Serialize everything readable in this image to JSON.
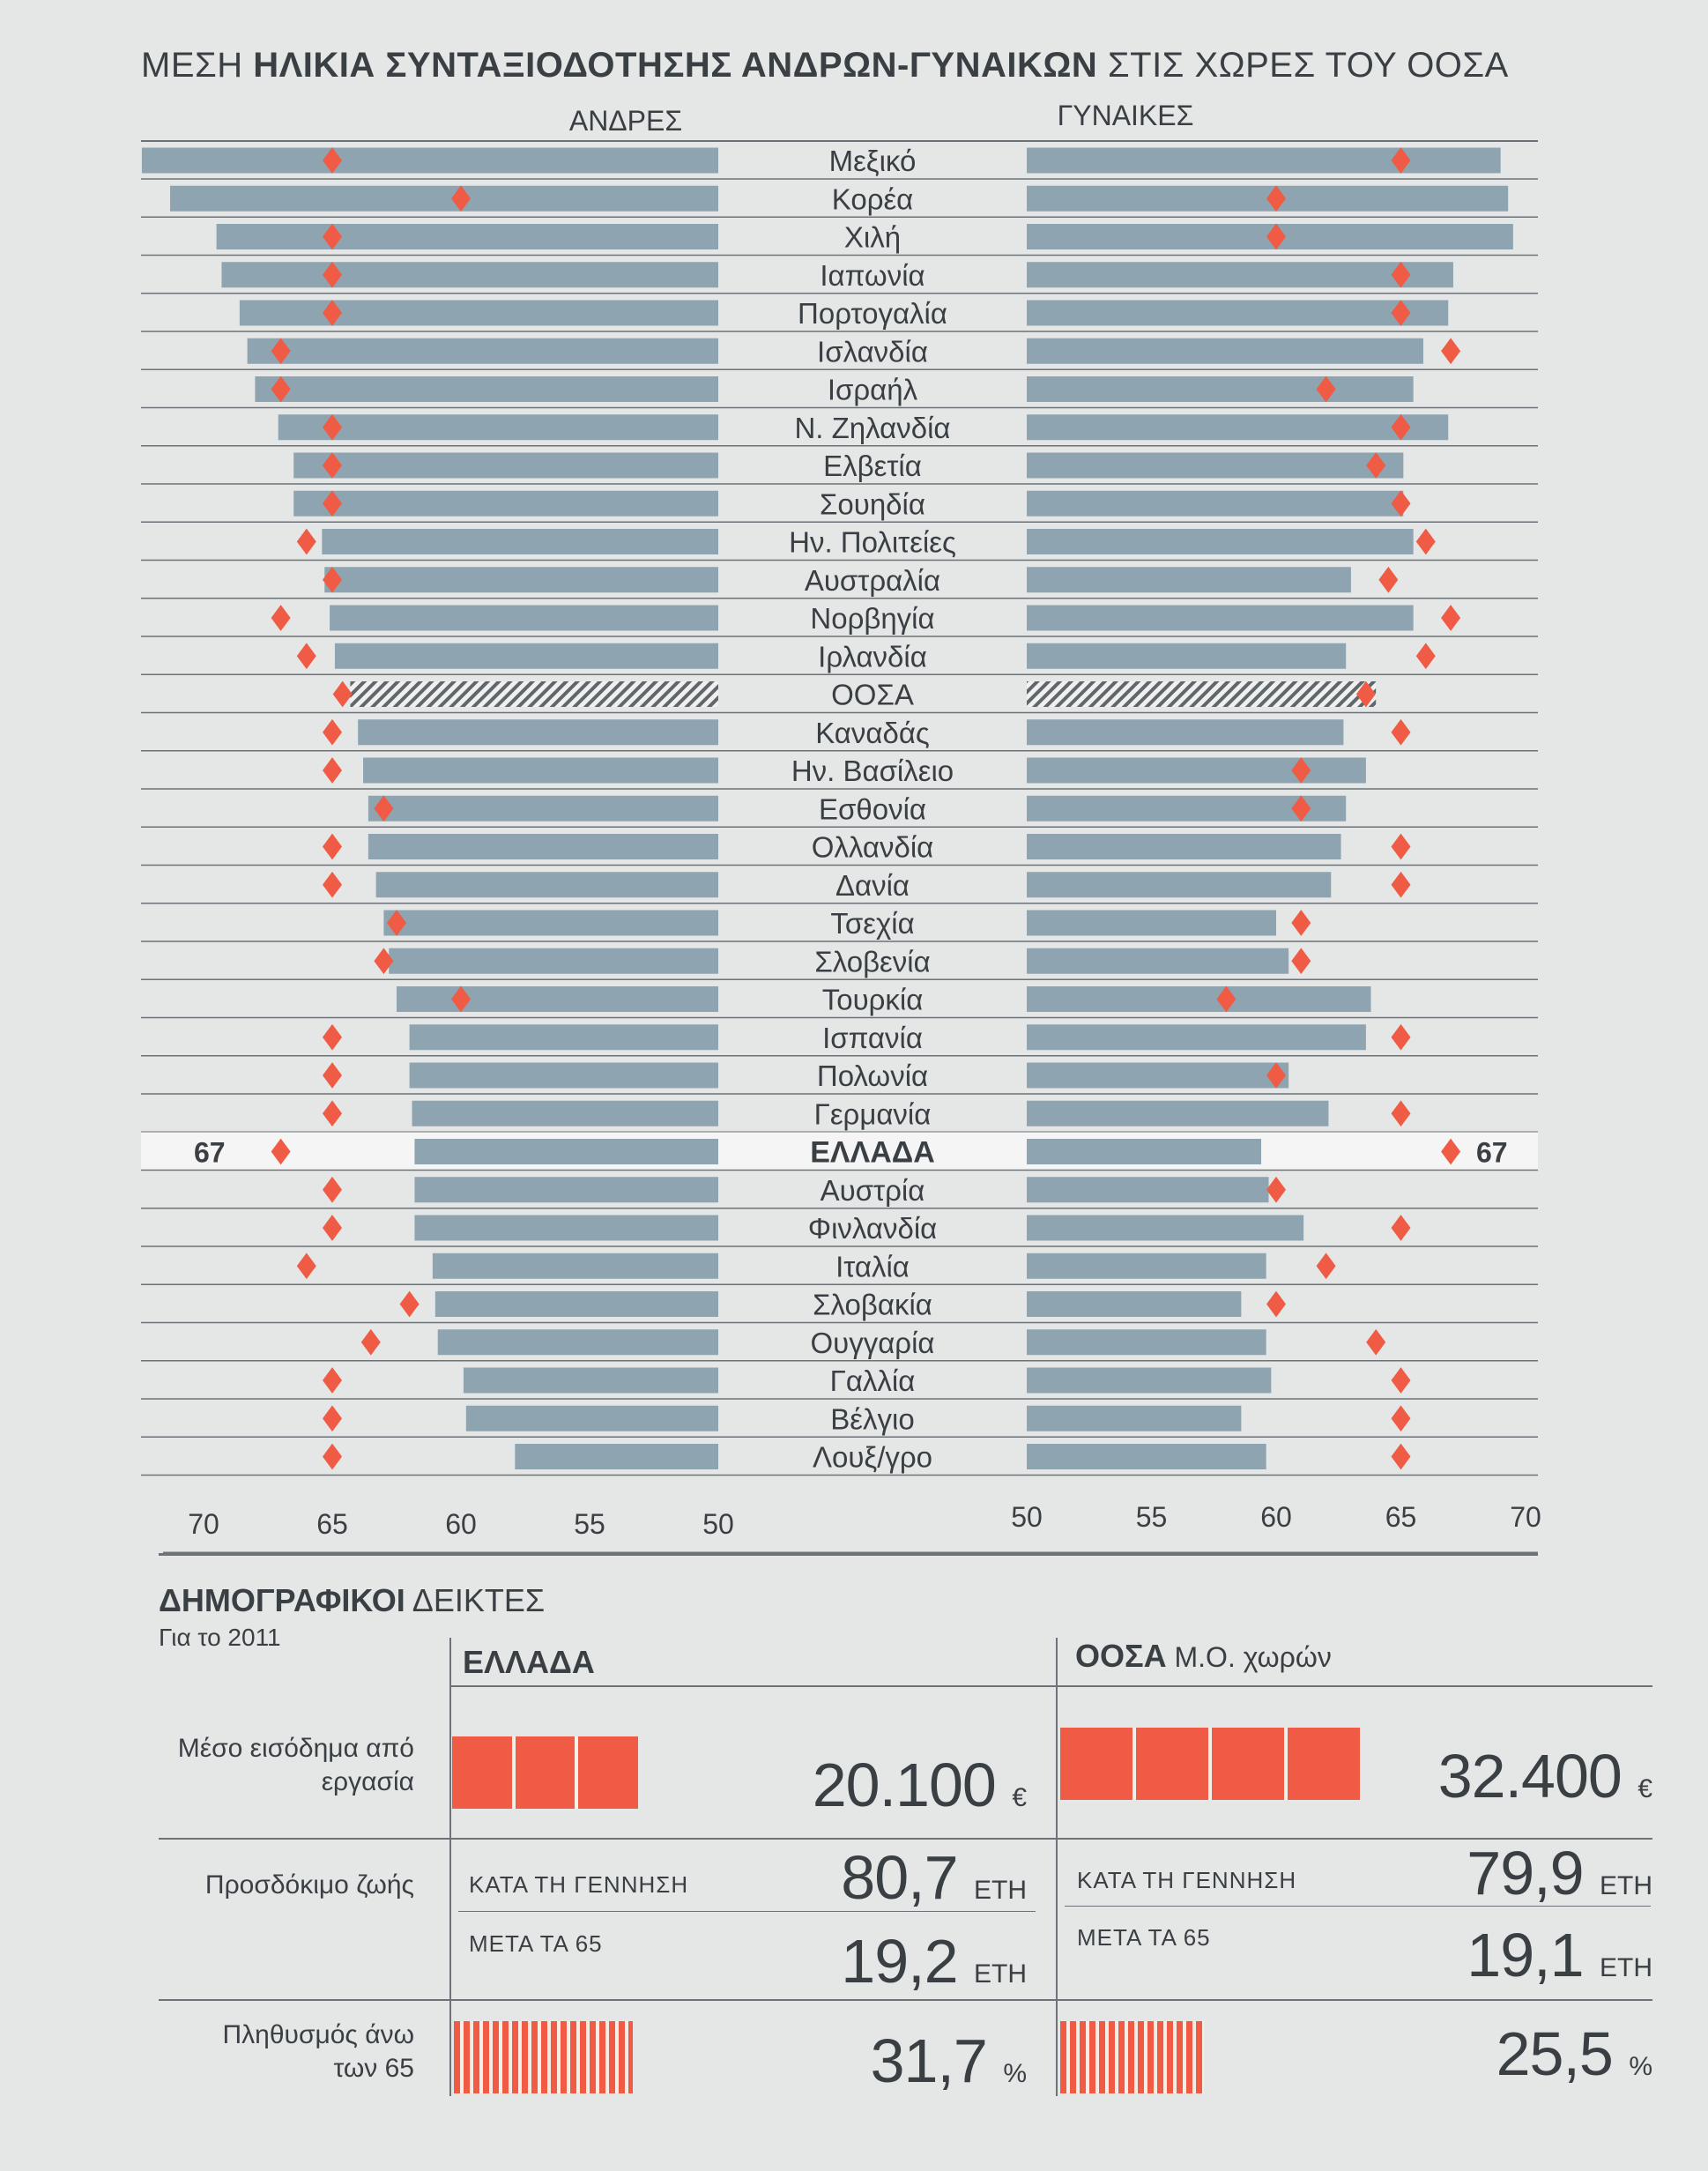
{
  "title": {
    "part1": "ΜΕΣΗ ",
    "bold": "ΗΛΙΚΙΑ ΣΥΝΤΑΞΙΟΔΟΤΗΣΗΣ ΑΝΔΡΩΝ-ΓΥΝΑΙΚΩΝ",
    "part2": " ΣΤΙΣ ΧΩΡΕΣ ΤΟΥ ΟΟΣΑ"
  },
  "chart_data": {
    "type": "bar",
    "title": "ΜΕΣΗ ΗΛΙΚΙΑ ΣΥΝΤΑΞΙΟΔΟΤΗΣΗΣ ΑΝΔΡΩΝ-ΓΥΝΑΙΚΩΝ ΣΤΙΣ ΧΩΡΕΣ ΤΟΥ ΟΟΣΑ",
    "left_header": "ΑΝΔΡΕΣ",
    "right_header": "ΓΥΝΑΙΚΕΣ",
    "left_ticks": [
      "70",
      "65",
      "60",
      "55",
      "50"
    ],
    "right_ticks": [
      "50",
      "55",
      "60",
      "65",
      "70"
    ],
    "axis_range": [
      50,
      70
    ],
    "greece_label": "67",
    "accent_color": "#ef5b44",
    "bar_color": "#8ea4b1",
    "countries": [
      "Μεξικό",
      "Κορέα",
      "Χιλή",
      "Ιαπωνία",
      "Πορτογαλία",
      "Ισλανδία",
      "Ισραήλ",
      "Ν. Ζηλανδία",
      "Ελβετία",
      "Σουηδία",
      "Ην. Πολιτείες",
      "Αυστραλία",
      "Νορβηγία",
      "Ιρλανδία",
      "ΟΟΣΑ",
      "Καναδάς",
      "Ην. Βασίλειο",
      "Εσθονία",
      "Ολλανδία",
      "Δανία",
      "Τσεχία",
      "Σλοβενία",
      "Τουρκία",
      "Ισπανία",
      "Πολωνία",
      "Γερμανία",
      "ΕΛΛΑΔΑ",
      "Αυστρία",
      "Φινλανδία",
      "Ιταλία",
      "Σλοβακία",
      "Ουγγαρία",
      "Γαλλία",
      "Βέλγιο",
      "Λουξ/γρο"
    ],
    "series": [
      {
        "name": "Άνδρες - μέση πραγματική ηλικία",
        "values": [
          72.4,
          71.3,
          69.5,
          69.3,
          68.6,
          68.3,
          68.0,
          67.1,
          66.5,
          66.5,
          65.4,
          65.3,
          65.1,
          64.9,
          64.3,
          64.0,
          63.8,
          63.6,
          63.6,
          63.3,
          63.0,
          62.8,
          62.5,
          62.0,
          62.0,
          61.9,
          61.8,
          61.8,
          61.8,
          61.1,
          61.0,
          60.9,
          59.9,
          59.8,
          57.9
        ]
      },
      {
        "name": "Άνδρες - επίσημη ηλικία",
        "values": [
          65,
          60,
          65,
          65,
          65,
          67,
          67,
          65,
          65,
          65,
          66,
          65,
          67,
          66,
          64.6,
          65,
          65,
          63,
          65,
          65,
          62.5,
          63,
          60,
          65,
          65,
          65,
          67,
          65,
          65,
          66,
          62,
          63.5,
          65,
          65,
          65
        ]
      },
      {
        "name": "Γυναίκες - μέση πραγματική ηλικία",
        "values": [
          69.0,
          69.3,
          69.5,
          67.1,
          66.9,
          65.9,
          65.5,
          66.9,
          65.1,
          65.1,
          65.5,
          63.0,
          65.5,
          62.8,
          64.0,
          62.7,
          63.6,
          62.8,
          62.6,
          62.2,
          60.0,
          60.5,
          63.8,
          63.6,
          60.5,
          62.1,
          59.4,
          59.7,
          61.1,
          59.6,
          58.6,
          59.6,
          59.8,
          58.6,
          59.6
        ]
      },
      {
        "name": "Γυναίκες - επίσημη ηλικία",
        "values": [
          65,
          60,
          60,
          65,
          65,
          67,
          62,
          65,
          64,
          65,
          66,
          64.5,
          67,
          66,
          63.6,
          65,
          61,
          61,
          65,
          65,
          61,
          61,
          58,
          65,
          60,
          65,
          67,
          60,
          65,
          62,
          60,
          64,
          65,
          65,
          65
        ]
      }
    ]
  },
  "demo": {
    "title_bold": "ΔΗΜΟΓΡΑΦΙΚΟΙ",
    "title_rest": " ΔΕΙΚΤΕΣ",
    "subtitle": "Για το 2011",
    "greece_header": "ΕΛΛΑΔΑ",
    "oecd_header_bold": "ΟΟΣΑ",
    "oecd_header_rest": " Μ.Ο. χωρών",
    "income_label": "Μέσο εισόδημα από εργασία",
    "life_label": "Προσδόκιμο ζωής",
    "pop_label": "Πληθυσμός άνω των 65",
    "at_birth": "ΚΑΤΑ ΤΗ ΓΕΝΝΗΣΗ",
    "after_65": "ΜΕΤΑ ΤΑ 65",
    "greece": {
      "income": "20.100",
      "income_unit": "€",
      "income_value": 20100,
      "life_birth": "80,7",
      "life_after65": "19,2",
      "pop65": "31,7",
      "pop_unit": "%"
    },
    "oecd": {
      "income": "32.400",
      "income_unit": "€",
      "income_value": 32400,
      "life_birth": "79,9",
      "life_after65": "19,1",
      "pop65": "25,5",
      "pop_unit": "%"
    },
    "years_unit": "ΕΤΗ"
  }
}
